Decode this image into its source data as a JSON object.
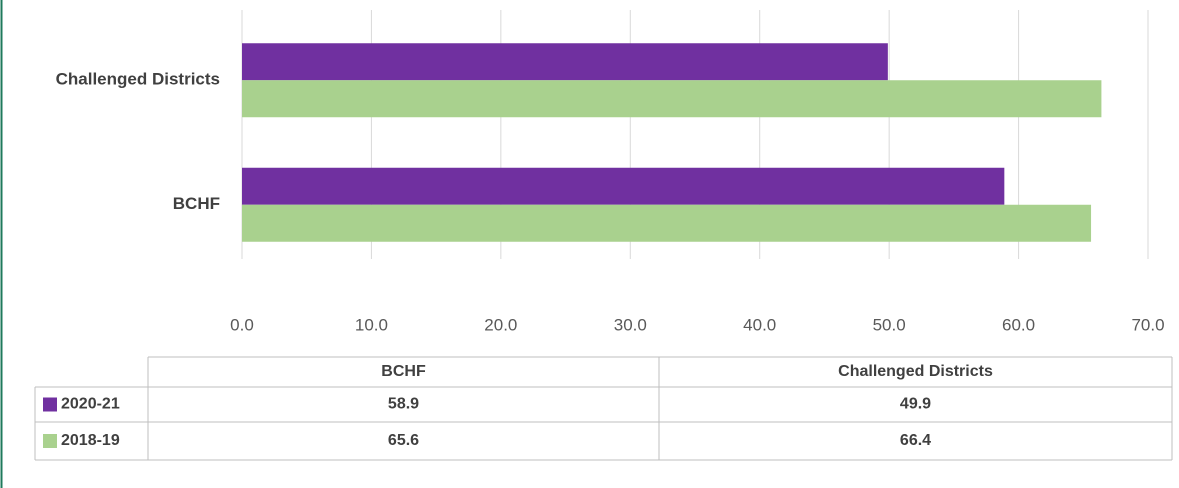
{
  "chart_data": {
    "type": "barh",
    "categories": [
      "BCHF",
      "Challenged Districts"
    ],
    "series": [
      {
        "name": "2020-21",
        "color": "#7030a0",
        "values": [
          58.9,
          49.9
        ]
      },
      {
        "name": "2018-19",
        "color": "#a9d18e",
        "values": [
          65.6,
          66.4
        ]
      }
    ],
    "xlim": [
      0,
      70
    ],
    "xticks": [
      {
        "value": 0,
        "label": "0.0"
      },
      {
        "value": 10,
        "label": "10.0"
      },
      {
        "value": 20,
        "label": "20.0"
      },
      {
        "value": 30,
        "label": "30.0"
      },
      {
        "value": 40,
        "label": "40.0"
      },
      {
        "value": 50,
        "label": "50.0"
      },
      {
        "value": 60,
        "label": "60.0"
      },
      {
        "value": 70,
        "label": "70.0"
      }
    ],
    "grid": true
  }
}
